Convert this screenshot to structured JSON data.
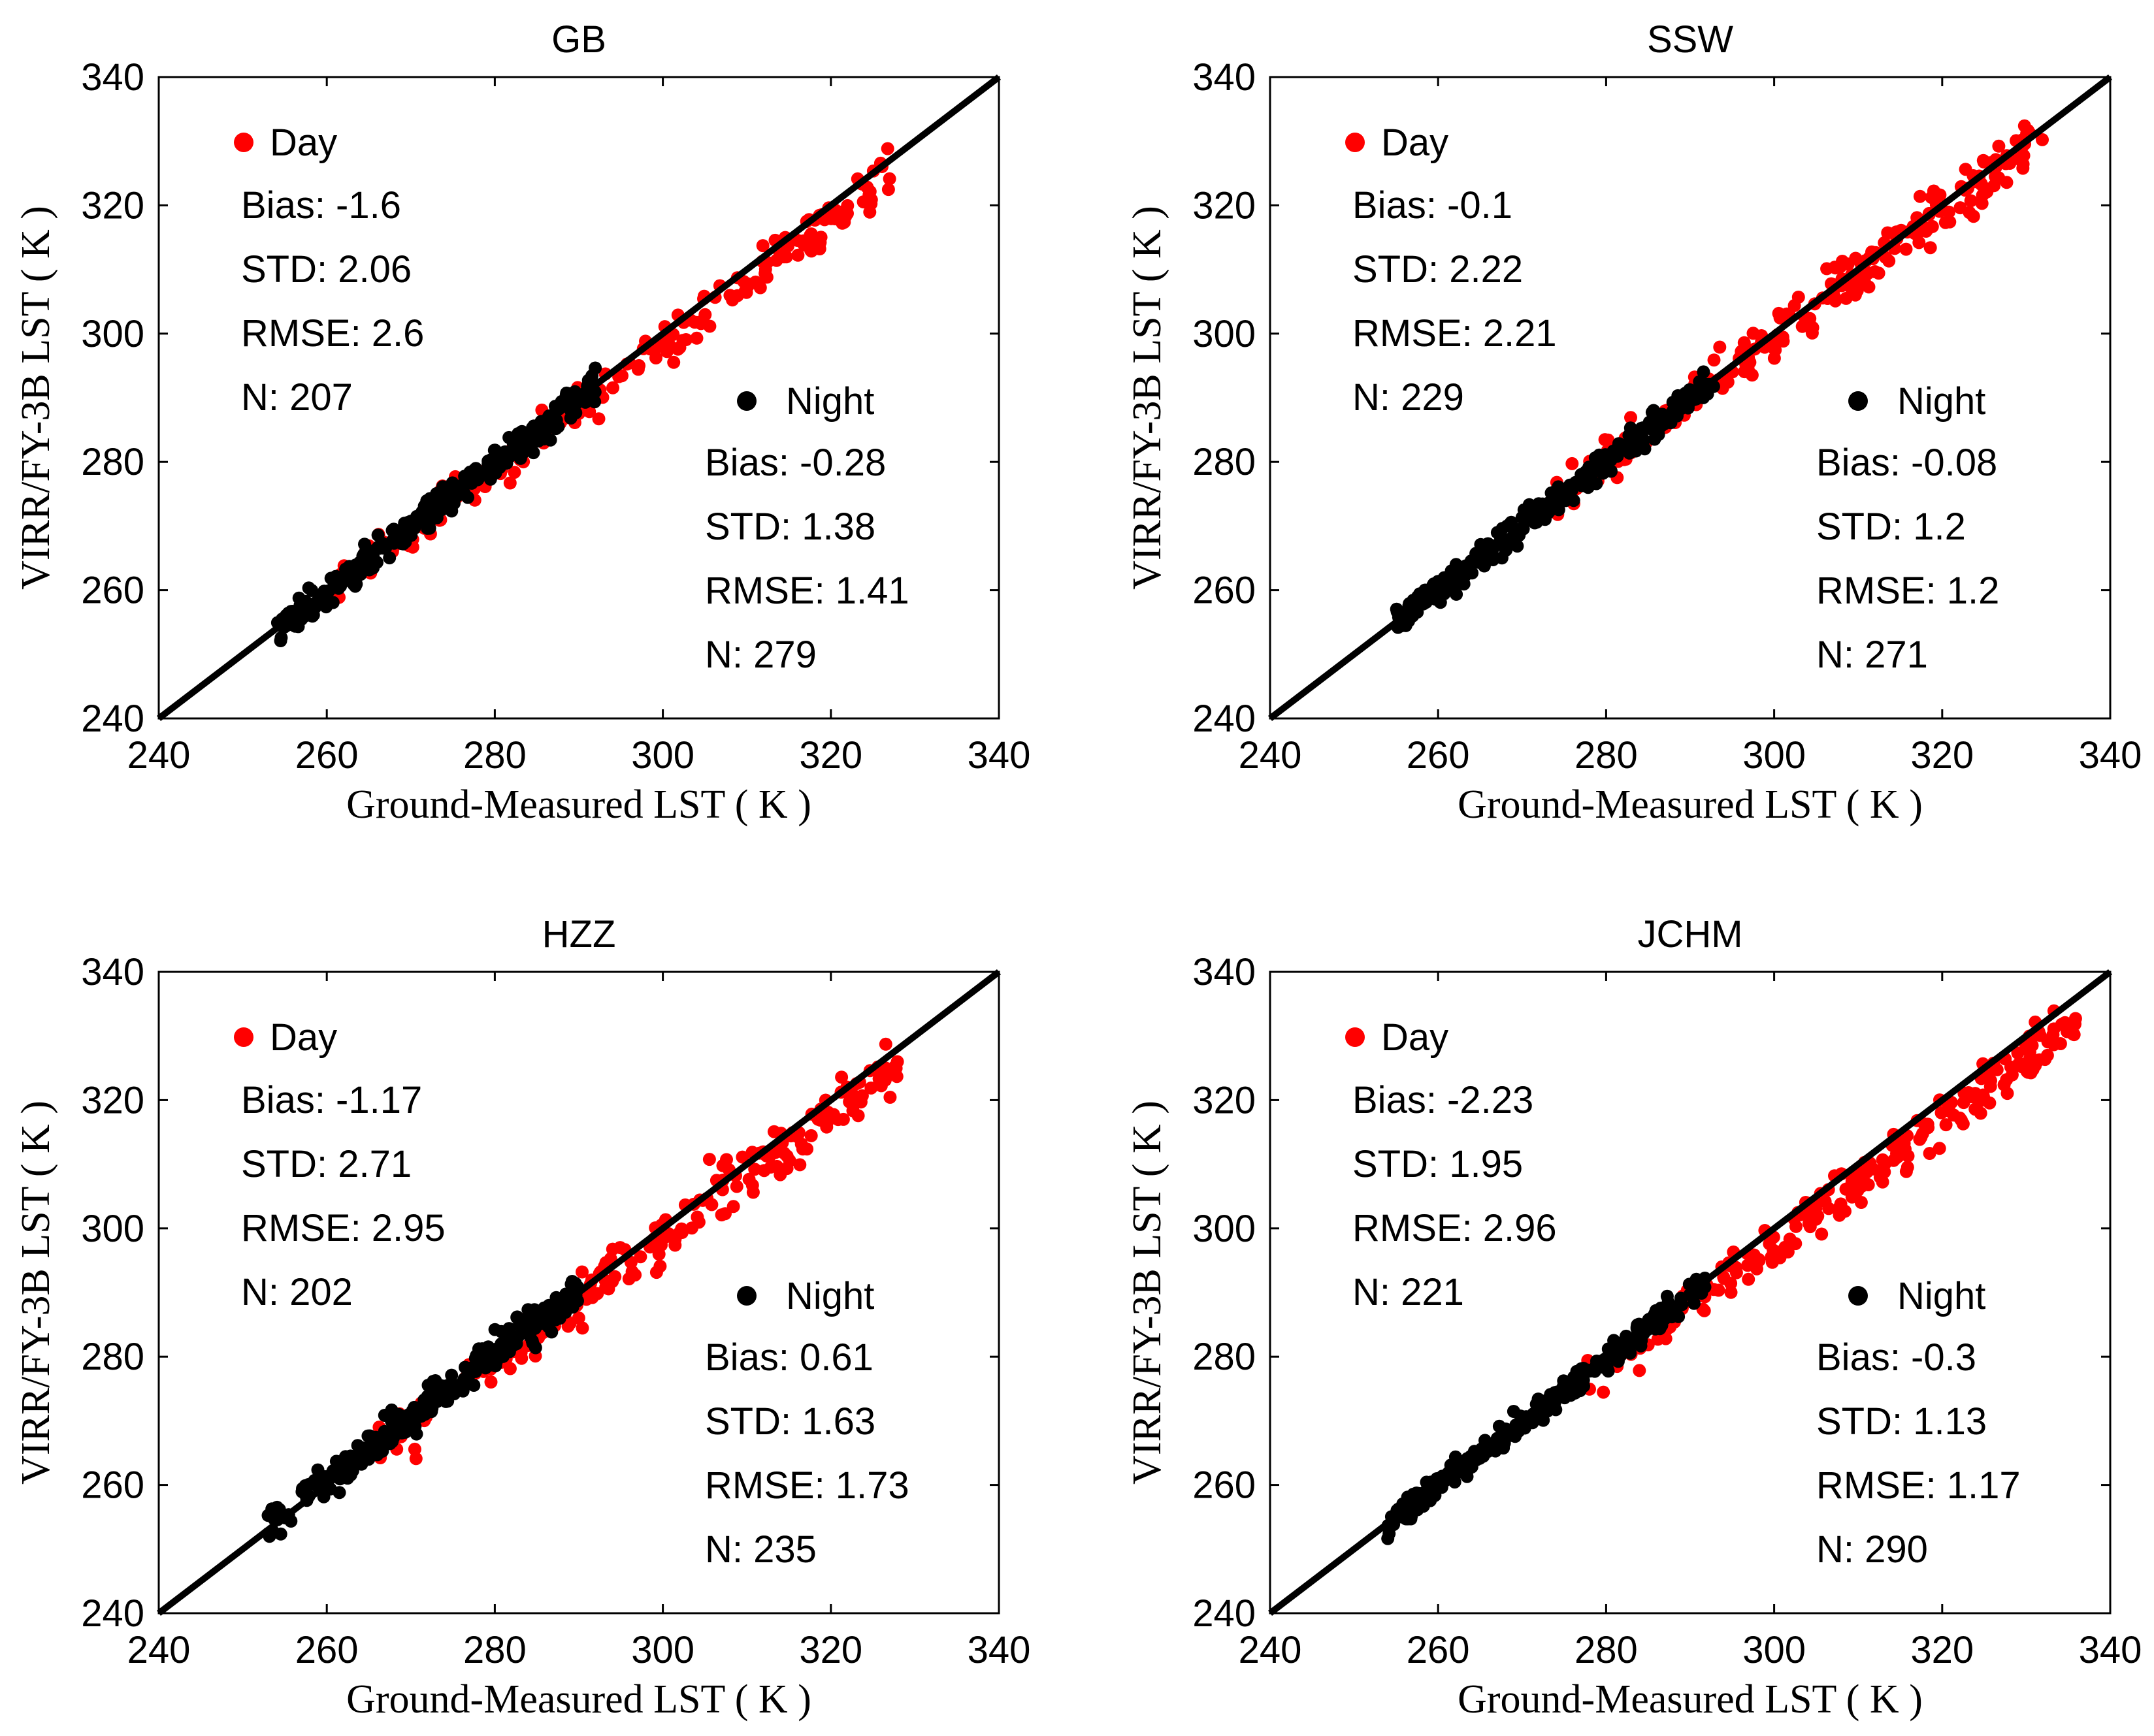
{
  "figure": {
    "ylabel": "VIRR/FY-3B LST ( K )",
    "xlabel": "Ground-Measured LST ( K )"
  },
  "colors": {
    "day": "#ff0000",
    "night": "#000000",
    "line": "#000000"
  },
  "chart_data": [
    {
      "type": "scatter",
      "title": "GB",
      "xlabel": "Ground-Measured LST ( K )",
      "ylabel": "VIRR/FY-3B LST ( K )",
      "xlim": [
        240,
        340
      ],
      "ylim": [
        240,
        340
      ],
      "xticks": [
        240,
        260,
        280,
        300,
        320,
        340
      ],
      "yticks": [
        240,
        260,
        280,
        300,
        320,
        340
      ],
      "reference_line": "1:1",
      "series": [
        {
          "name": "Day",
          "label": "Day",
          "color": "#ff0000",
          "x_range": [
            258,
            327
          ],
          "offset": -1.6,
          "spread": 2.06,
          "count": 207,
          "stats": {
            "bias": "Bias: -1.6",
            "std": "STD: 2.06",
            "rmse": "RMSE: 2.6",
            "n": "N: 207"
          }
        },
        {
          "name": "Night",
          "label": "Night",
          "color": "#000000",
          "x_range": [
            254,
            292
          ],
          "offset": -0.28,
          "spread": 1.38,
          "count": 279,
          "stats": {
            "bias": "Bias: -0.28",
            "std": "STD: 1.38",
            "rmse": "RMSE: 1.41",
            "n": "N: 279"
          }
        }
      ]
    },
    {
      "type": "scatter",
      "title": "SSW",
      "xlabel": "Ground-Measured LST ( K )",
      "ylabel": "VIRR/FY-3B LST ( K )",
      "xlim": [
        240,
        340
      ],
      "ylim": [
        240,
        340
      ],
      "xticks": [
        240,
        260,
        280,
        300,
        320,
        340
      ],
      "yticks": [
        240,
        260,
        280,
        300,
        320,
        340
      ],
      "reference_line": "1:1",
      "series": [
        {
          "name": "Day",
          "label": "Day",
          "color": "#ff0000",
          "x_range": [
            272,
            332
          ],
          "offset": -0.1,
          "spread": 2.22,
          "count": 229,
          "stats": {
            "bias": "Bias: -0.1",
            "std": "STD: 2.22",
            "rmse": "RMSE: 2.21",
            "n": "N: 229"
          }
        },
        {
          "name": "Night",
          "label": "Night",
          "color": "#000000",
          "x_range": [
            255,
            293
          ],
          "offset": -0.08,
          "spread": 1.2,
          "count": 271,
          "stats": {
            "bias": "Bias: -0.08",
            "std": "STD: 1.2",
            "rmse": "RMSE: 1.2",
            "n": "N: 271"
          }
        }
      ]
    },
    {
      "type": "scatter",
      "title": "HZZ",
      "xlabel": "Ground-Measured LST ( K )",
      "ylabel": "VIRR/FY-3B LST ( K )",
      "xlim": [
        240,
        340
      ],
      "ylim": [
        240,
        340
      ],
      "xticks": [
        240,
        260,
        280,
        300,
        320,
        340
      ],
      "yticks": [
        240,
        260,
        280,
        300,
        320,
        340
      ],
      "reference_line": "1:1",
      "series": [
        {
          "name": "Day",
          "label": "Day",
          "color": "#ff0000",
          "x_range": [
            266,
            328
          ],
          "offset": -1.17,
          "spread": 2.71,
          "count": 202,
          "stats": {
            "bias": "Bias: -1.17",
            "std": "STD: 2.71",
            "rmse": "RMSE: 2.95",
            "n": "N: 202"
          }
        },
        {
          "name": "Night",
          "label": "Night",
          "color": "#000000",
          "x_range": [
            253,
            290
          ],
          "offset": 0.61,
          "spread": 1.63,
          "count": 235,
          "stats": {
            "bias": "Bias: 0.61",
            "std": "STD: 1.63",
            "rmse": "RMSE: 1.73",
            "n": "N: 235"
          }
        }
      ]
    },
    {
      "type": "scatter",
      "title": "JCHM",
      "xlabel": "Ground-Measured LST ( K )",
      "ylabel": "VIRR/FY-3B LST ( K )",
      "xlim": [
        240,
        340
      ],
      "ylim": [
        240,
        340
      ],
      "xticks": [
        240,
        260,
        280,
        300,
        320,
        340
      ],
      "yticks": [
        240,
        260,
        280,
        300,
        320,
        340
      ],
      "reference_line": "1:1",
      "series": [
        {
          "name": "Day",
          "label": "Day",
          "color": "#ff0000",
          "x_range": [
            277,
            336
          ],
          "offset": -2.23,
          "spread": 1.95,
          "count": 221,
          "stats": {
            "bias": "Bias: -2.23",
            "std": "STD: 1.95",
            "rmse": "RMSE: 2.96",
            "n": "N: 221"
          }
        },
        {
          "name": "Night",
          "label": "Night",
          "color": "#000000",
          "x_range": [
            254,
            292
          ],
          "offset": -0.3,
          "spread": 1.13,
          "count": 290,
          "stats": {
            "bias": "Bias: -0.3",
            "std": "STD: 1.13",
            "rmse": "RMSE: 1.17",
            "n": "N: 290"
          }
        }
      ]
    }
  ]
}
